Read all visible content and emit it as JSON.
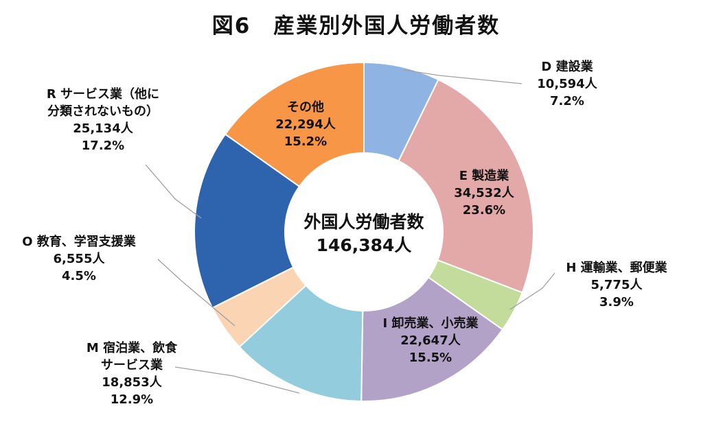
{
  "title": "図6　産業別外国人労働者数",
  "chart_data": {
    "type": "pie",
    "subtype": "donut",
    "center_label": "外国人労働者数",
    "center_value": "146,384人",
    "slices": [
      {
        "category": "D 建設業",
        "name_lines": [
          "D 建設業"
        ],
        "count": "10,594人",
        "value": 10594,
        "percent": "7.2%",
        "color": "#8fb4e3"
      },
      {
        "category": "E 製造業",
        "name_lines": [
          "E 製造業"
        ],
        "count": "34,532人",
        "value": 34532,
        "percent": "23.6%",
        "color": "#e3a8a8"
      },
      {
        "category": "H 運輸業、郵便業",
        "name_lines": [
          "H 運輸業、郵便業"
        ],
        "count": "5,775人",
        "value": 5775,
        "percent": "3.9%",
        "color": "#c3dc9b"
      },
      {
        "category": "I 卸売業、小売業",
        "name_lines": [
          "I 卸売業、小売業"
        ],
        "count": "22,647人",
        "value": 22647,
        "percent": "15.5%",
        "color": "#b3a2c7"
      },
      {
        "category": "M 宿泊業、飲食サービス業",
        "name_lines": [
          "M 宿泊業、飲食",
          "サービス業"
        ],
        "count": "18,853人",
        "value": 18853,
        "percent": "12.9%",
        "color": "#93cddd"
      },
      {
        "category": "O 教育、学習支援業",
        "name_lines": [
          "O 教育、学習支援業"
        ],
        "count": "6,555人",
        "value": 6555,
        "percent": "4.5%",
        "color": "#fbd4b4"
      },
      {
        "category": "R サービス業（他に分類されないもの）",
        "name_lines": [
          "R サービス業（他に",
          "分類されないもの）"
        ],
        "count": "25,134人",
        "value": 25134,
        "percent": "17.2%",
        "color": "#2e63ae"
      },
      {
        "category": "その他",
        "name_lines": [
          "その他"
        ],
        "count": "22,294人",
        "value": 22294,
        "percent": "15.2%",
        "color": "#f79646"
      }
    ]
  }
}
